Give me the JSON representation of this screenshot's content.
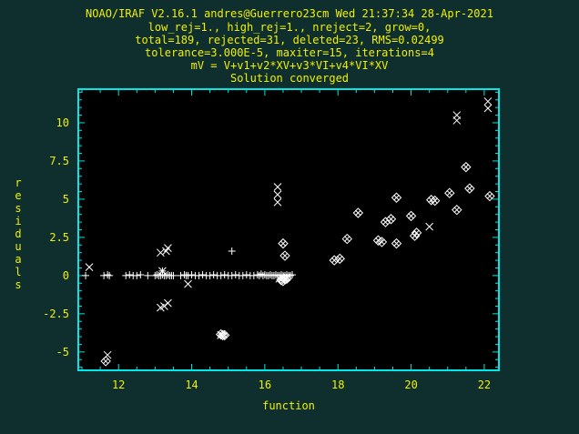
{
  "header": {
    "lines": [
      "NOAO/IRAF V2.16.1 andres@Guerrero23cm Wed 21:37:34 28-Apr-2021",
      "low_rej=1., high_rej=1., nreject=2, grow=0,",
      "total=189, rejected=31, deleted=23, RMS=0.02499",
      "tolerance=3.000E-5, maxiter=15, iterations=4",
      "mV = V+v1+v2*XV+v3*VI+v4*VI*XV",
      "Solution converged"
    ]
  },
  "colors": {
    "background": "#0f2f2f",
    "frame": "#00e8e8",
    "text": "#f0f000",
    "plot_background": "#000000",
    "points": "#ffffff"
  },
  "chart_data": {
    "type": "scatter",
    "xlabel": "function",
    "ylabel": "residuals",
    "xlim": [
      10.9,
      22.4
    ],
    "ylim": [
      -6.2,
      12.2
    ],
    "xticks": [
      12,
      14,
      16,
      18,
      20,
      22
    ],
    "yticks": [
      -5,
      -2.5,
      0,
      2.5,
      5,
      7.5,
      10
    ],
    "ytick_labels": [
      "-5",
      "-2.5",
      "0",
      "2.5",
      "5",
      "7.5",
      "10"
    ],
    "grid": false,
    "series": [
      {
        "marker": "plus",
        "x": [
          11.1,
          11.6,
          11.7,
          11.75,
          12.2,
          12.3,
          12.4,
          12.5,
          12.6,
          12.8,
          13.0,
          13.05,
          13.1,
          13.15,
          13.2,
          13.25,
          13.3,
          13.35,
          13.4,
          13.45,
          13.5,
          13.7,
          13.8,
          13.85,
          13.9,
          14.0,
          14.1,
          14.2,
          14.3,
          14.4,
          14.5,
          14.6,
          14.7,
          14.8,
          14.9,
          15.0,
          15.1,
          15.2,
          15.3,
          15.4,
          15.5,
          15.6,
          15.7,
          15.8,
          15.85,
          15.9,
          15.95,
          16.0,
          16.05,
          16.1,
          16.15,
          16.2,
          16.25,
          16.3,
          16.35,
          16.4,
          16.45,
          16.5,
          16.55,
          16.6,
          16.65,
          16.7,
          16.75,
          13.2,
          15.1
        ],
        "y": [
          0.0,
          0.0,
          0.05,
          0.0,
          0.0,
          0.05,
          0.0,
          0.0,
          0.05,
          0.0,
          0.0,
          0.05,
          0.0,
          0.0,
          0.05,
          0.0,
          0.0,
          0.05,
          0.0,
          0.0,
          0.0,
          0.0,
          0.05,
          0.0,
          0.0,
          0.05,
          0.0,
          0.0,
          0.05,
          0.0,
          0.0,
          0.05,
          0.0,
          0.0,
          0.05,
          0.0,
          0.0,
          0.05,
          0.0,
          0.0,
          0.05,
          0.0,
          0.0,
          0.05,
          0.0,
          0.1,
          0.0,
          0.05,
          0.0,
          0.0,
          0.05,
          0.0,
          0.0,
          0.05,
          0.0,
          0.0,
          0.05,
          0.0,
          0.0,
          0.05,
          0.0,
          0.0,
          0.05,
          0.3,
          1.6
        ]
      },
      {
        "marker": "cross",
        "x": [
          11.2,
          11.7,
          13.15,
          13.2,
          13.3,
          13.35,
          13.35,
          13.15,
          13.25,
          13.9,
          16.35,
          16.35,
          16.35,
          16.5,
          16.4,
          16.6,
          20.5,
          21.25,
          21.25,
          22.1,
          22.1,
          14.8
        ],
        "y": [
          0.55,
          -5.2,
          1.5,
          0.3,
          1.6,
          1.8,
          -1.8,
          -2.1,
          -2.0,
          -0.55,
          5.8,
          5.3,
          4.8,
          -0.15,
          -0.2,
          -0.1,
          3.2,
          10.5,
          10.15,
          11.4,
          10.95,
          -3.9
        ]
      },
      {
        "marker": "diamond-cross",
        "x": [
          11.65,
          14.8,
          14.85,
          14.9,
          16.45,
          16.5,
          16.55,
          16.6,
          16.5,
          16.55,
          17.9,
          18.05,
          18.25,
          18.55,
          19.1,
          19.2,
          19.3,
          19.45,
          19.6,
          19.6,
          20.0,
          20.1,
          20.15,
          20.55,
          20.65,
          21.05,
          21.25,
          21.5,
          21.6,
          22.15
        ],
        "y": [
          -5.6,
          -3.85,
          -3.9,
          -3.9,
          -0.3,
          -0.35,
          -0.25,
          -0.2,
          2.1,
          1.3,
          1.0,
          1.1,
          2.4,
          4.1,
          2.3,
          2.2,
          3.5,
          3.7,
          5.1,
          2.1,
          3.9,
          2.6,
          2.8,
          4.95,
          4.9,
          5.4,
          4.3,
          7.1,
          5.7,
          5.2
        ]
      }
    ]
  }
}
